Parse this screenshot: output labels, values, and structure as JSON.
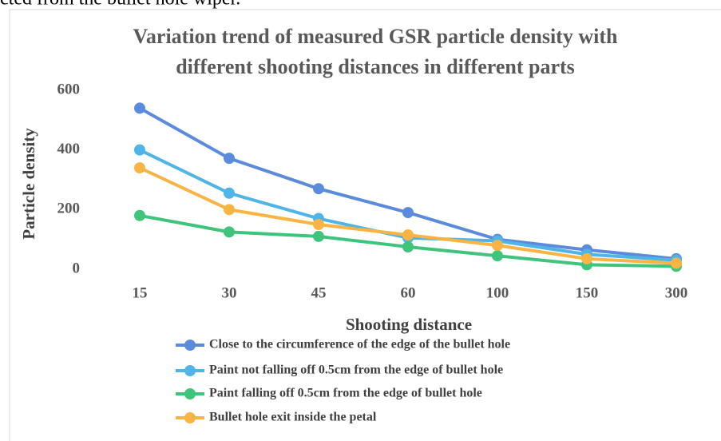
{
  "header_text": "cted from the bullet hole wiper.",
  "chart_data": {
    "type": "line",
    "title": [
      "Variation trend of measured GSR particle density with",
      "different shooting distances in different parts"
    ],
    "xlabel": "Shooting distance",
    "ylabel": "Particle density",
    "categories": [
      "15",
      "30",
      "45",
      "60",
      "100",
      "150",
      "300"
    ],
    "ylim": [
      0,
      600
    ],
    "yticks": [
      0,
      200,
      400,
      600
    ],
    "grid": false,
    "legend": "bottom",
    "series": [
      {
        "name": "Close to the circumference of the edge of the bullet hole",
        "color": "#5b8bdc",
        "values": [
          540,
          372,
          270,
          190,
          100,
          65,
          35
        ]
      },
      {
        "name": "Paint not falling off 0.5cm from the edge of bullet hole",
        "color": "#4fb4e8",
        "values": [
          400,
          255,
          170,
          105,
          95,
          50,
          30
        ]
      },
      {
        "name": "Paint falling off 0.5cm from the edge of bullet hole",
        "color": "#3fc47c",
        "values": [
          180,
          125,
          110,
          75,
          45,
          15,
          10
        ]
      },
      {
        "name": "Bullet hole exit inside the petal",
        "color": "#f9b443",
        "values": [
          340,
          200,
          150,
          115,
          80,
          35,
          20
        ]
      }
    ]
  }
}
